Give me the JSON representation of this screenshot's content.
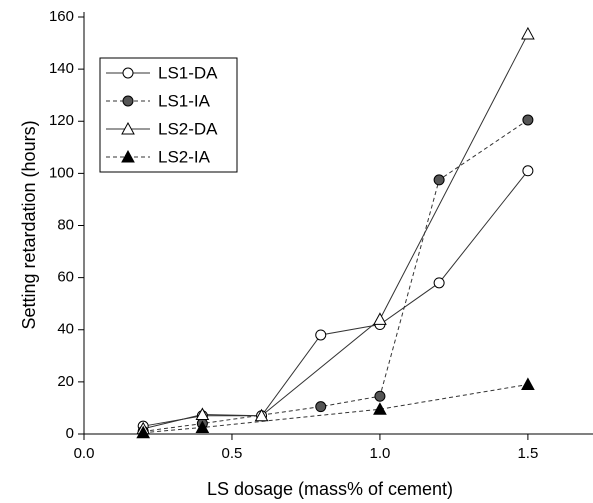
{
  "chart_data": {
    "type": "line",
    "x_label": "LS dosage (mass% of cement)",
    "y_label": "Setting retardation (hours)",
    "xlim": [
      0,
      1.72
    ],
    "ylim": [
      0,
      160
    ],
    "xticks": [
      {
        "value": 0,
        "label": "0.0"
      },
      0.5,
      {
        "value": 1,
        "label": "1.0"
      },
      1.5
    ],
    "yticks": [
      0,
      20,
      40,
      60,
      80,
      100,
      120,
      140,
      160
    ],
    "legend": "upper-left",
    "series": [
      {
        "name": "LS1-DA",
        "color": "#333333",
        "dash": "solid",
        "marker": "circle",
        "marker_fill": "#ffffff",
        "x": [
          0.2,
          0.4,
          0.6,
          0.8,
          1.0,
          1.2,
          1.5
        ],
        "values": [
          3,
          7,
          7,
          38,
          42,
          58,
          101
        ]
      },
      {
        "name": "LS1-IA",
        "color": "#333333",
        "dash": "dashed",
        "marker": "circle",
        "marker_fill": "#555555",
        "x": [
          0.2,
          0.4,
          0.8,
          1.0,
          1.2,
          1.5
        ],
        "values": [
          1,
          4,
          10.5,
          14.5,
          97.5,
          120.5
        ]
      },
      {
        "name": "LS2-DA",
        "color": "#333333",
        "dash": "solid",
        "marker": "triangle",
        "marker_fill": "#ffffff",
        "x": [
          0.2,
          0.4,
          0.6,
          1.0,
          1.5
        ],
        "values": [
          2,
          7.5,
          7,
          44,
          153.5
        ]
      },
      {
        "name": "LS2-IA",
        "color": "#333333",
        "dash": "dashed",
        "marker": "triangle",
        "marker_fill": "#000000",
        "x": [
          0.2,
          0.4,
          1.0,
          1.5
        ],
        "values": [
          0.5,
          2.5,
          9.5,
          19
        ]
      }
    ]
  }
}
